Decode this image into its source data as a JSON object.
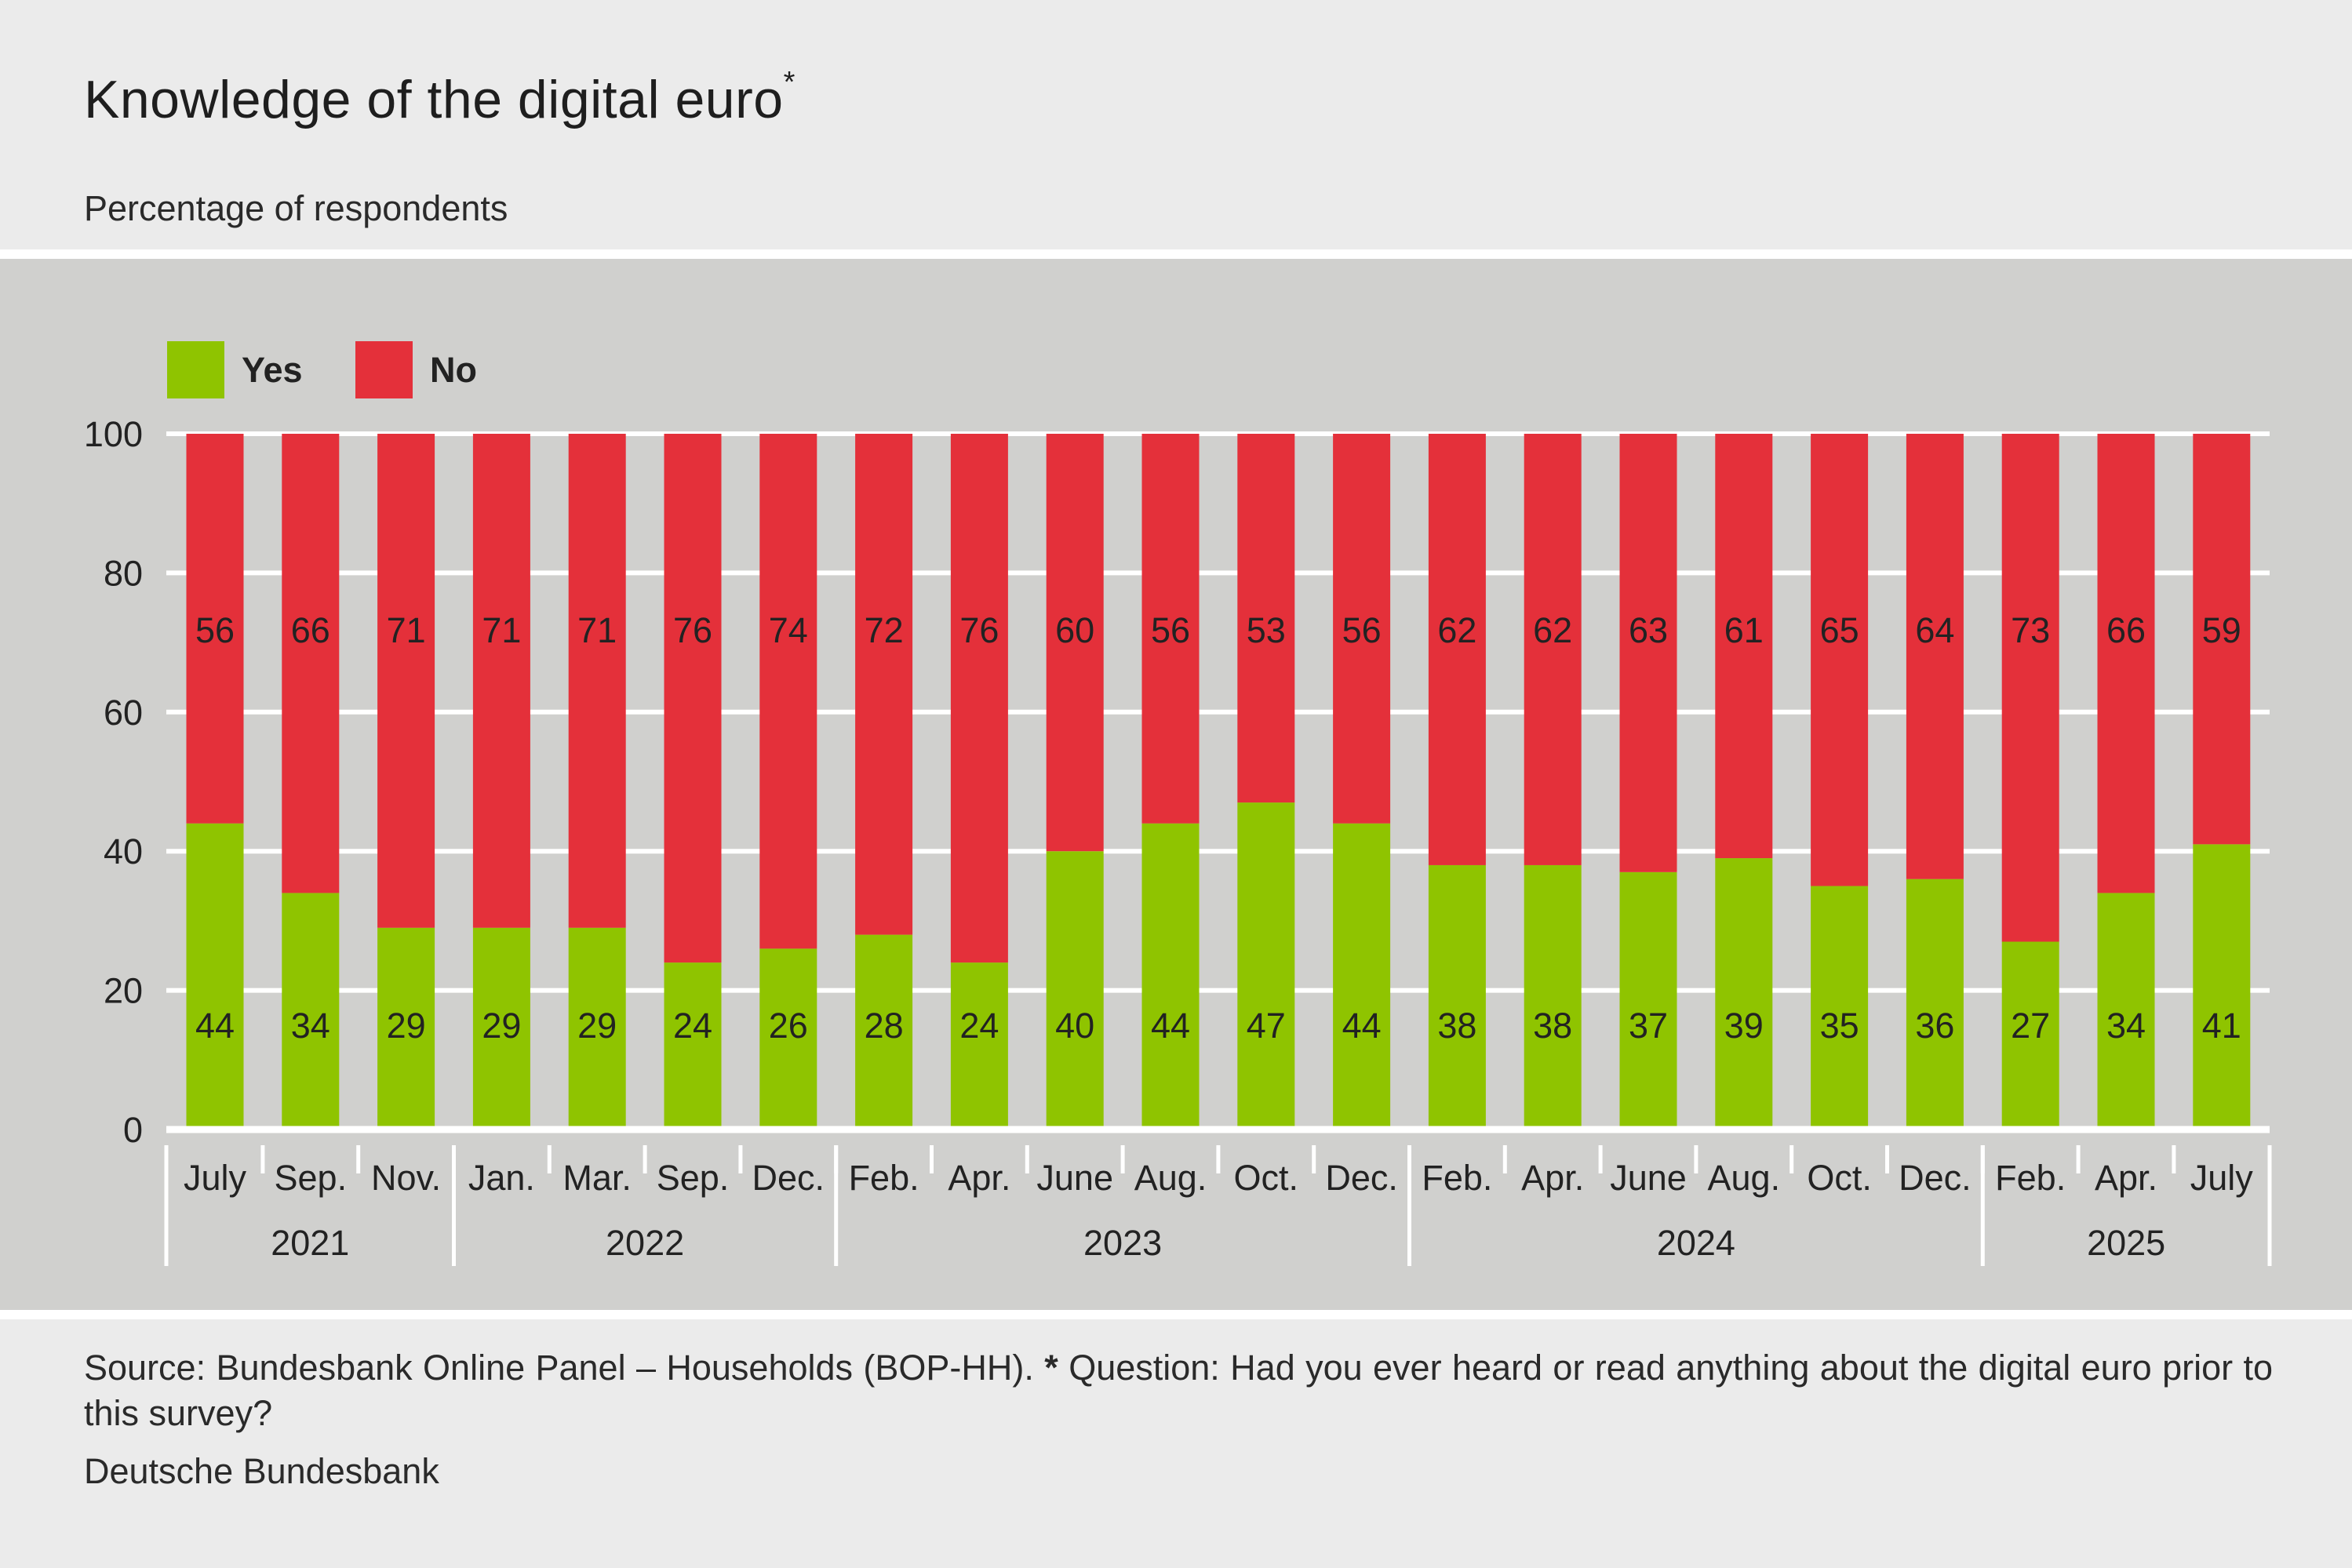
{
  "header": {
    "title": "Knowledge of the digital euro",
    "title_marker": "*",
    "subtitle": "Percentage of respondents"
  },
  "footer": {
    "source_text": "Source: Bundesbank Online Panel – Households (BOP-HH).",
    "question_marker": "*",
    "question_text": "Question: Had you ever heard or read anything about the digital euro prior to this survey?",
    "publisher": "Deutsche Bundesbank"
  },
  "colors": {
    "yes": "#8fc400",
    "no": "#e4303a",
    "panel_background": "#d0d0ce",
    "page_background": "#ebebeb",
    "gridline": "#ffffff"
  },
  "chart_data": {
    "type": "bar",
    "stacked": true,
    "title": "Knowledge of the digital euro",
    "subtitle": "Percentage of respondents",
    "legend": {
      "placement": "top-left",
      "entries": [
        "Yes",
        "No"
      ]
    },
    "categories": [
      "July",
      "Sep.",
      "Nov.",
      "Jan.",
      "Mar.",
      "Sep.",
      "Dec.",
      "Feb.",
      "Apr.",
      "June",
      "Aug.",
      "Oct.",
      "Dec.",
      "Feb.",
      "Apr.",
      "June",
      "Aug.",
      "Oct.",
      "Dec.",
      "Feb.",
      "Apr.",
      "July"
    ],
    "year_groups": [
      {
        "label": "2021",
        "count": 3
      },
      {
        "label": "2022",
        "count": 4
      },
      {
        "label": "2023",
        "count": 6
      },
      {
        "label": "2024",
        "count": 6
      },
      {
        "label": "2025",
        "count": 3
      }
    ],
    "series": [
      {
        "name": "Yes",
        "values": [
          44,
          34,
          29,
          29,
          29,
          24,
          26,
          28,
          24,
          40,
          44,
          47,
          44,
          38,
          38,
          37,
          39,
          35,
          36,
          27,
          34,
          41
        ]
      },
      {
        "name": "No",
        "values": [
          56,
          66,
          71,
          71,
          71,
          76,
          74,
          72,
          76,
          60,
          56,
          53,
          56,
          62,
          62,
          63,
          61,
          65,
          64,
          73,
          66,
          59
        ]
      }
    ],
    "ylim": [
      0,
      100
    ],
    "yticks": [
      0,
      20,
      40,
      60,
      80,
      100
    ],
    "grid": true,
    "xlabel": "",
    "ylabel": ""
  }
}
